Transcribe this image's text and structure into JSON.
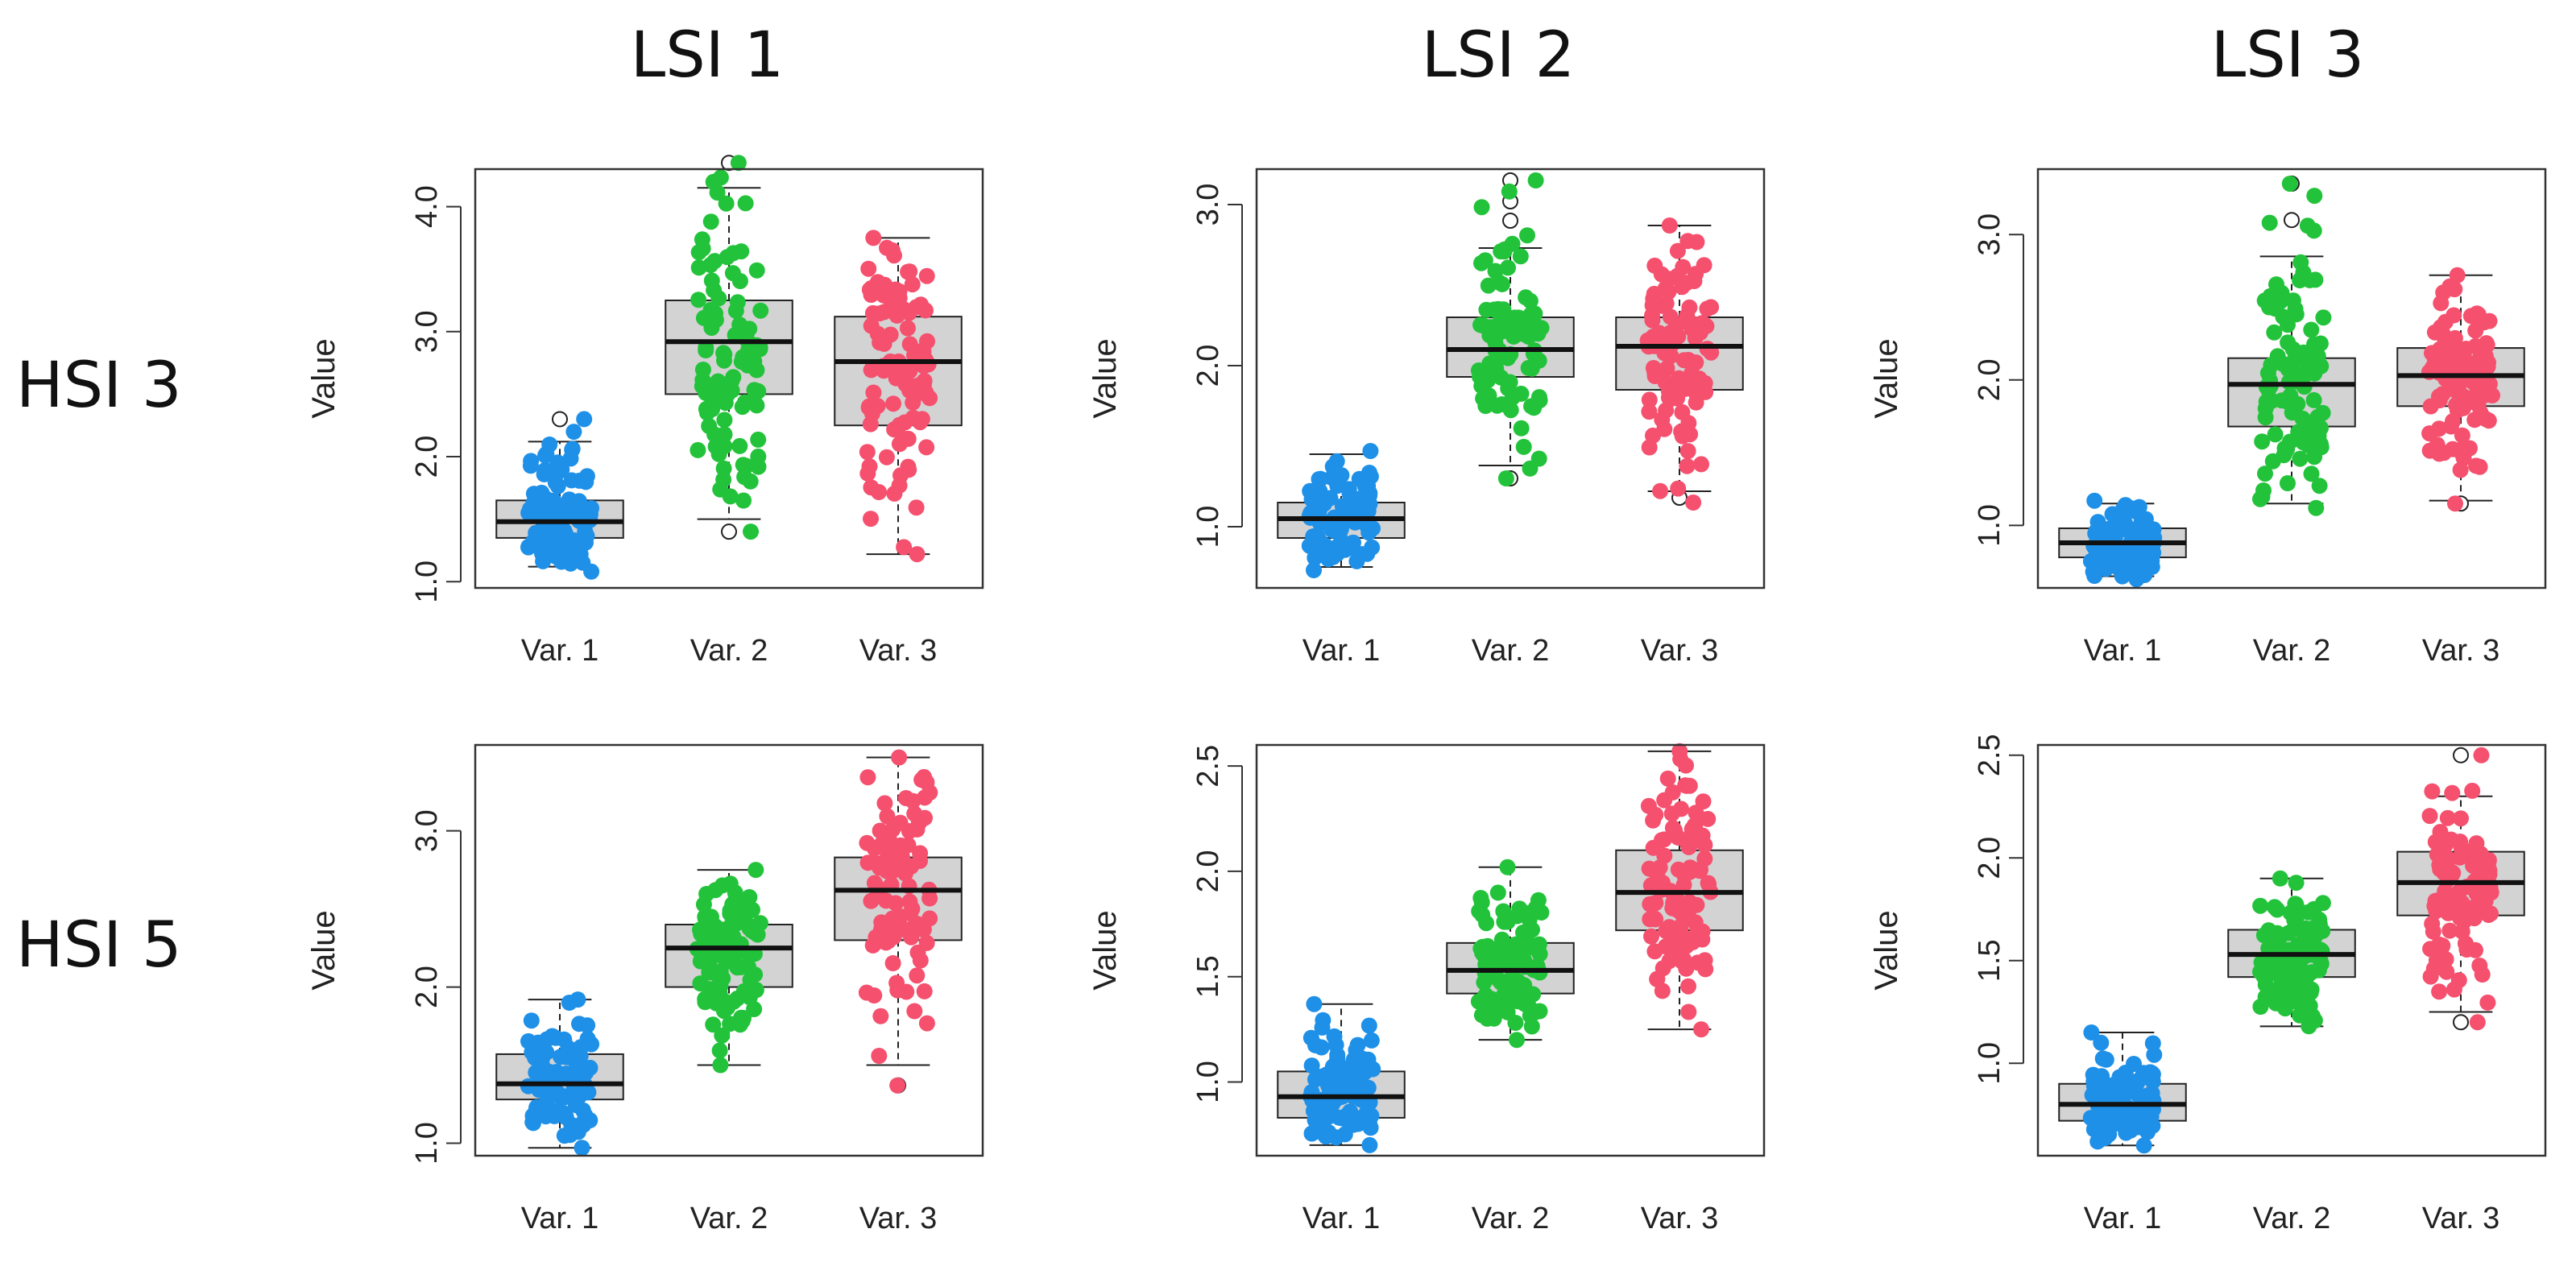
{
  "column_titles": [
    "LSI 1",
    "LSI 2",
    "LSI 3"
  ],
  "row_titles": [
    "HSI 3",
    "HSI 5"
  ],
  "colors": {
    "var1": "#1e90e8",
    "var2": "#22c33a",
    "var3": "#f5506e",
    "box_fill": "#d3d3d3"
  },
  "chart_data": [
    {
      "type": "box",
      "title": "HSI 3 / LSI 1",
      "ylabel": "Value",
      "categories": [
        "Var. 1",
        "Var. 2",
        "Var. 3"
      ],
      "ylim": [
        0.95,
        4.3
      ],
      "yticks": [
        1.0,
        2.0,
        3.0,
        4.0
      ],
      "ytick_labels": [
        "1.0",
        "2.0",
        "3.0",
        "4.0"
      ],
      "boxes": [
        {
          "whisker_low": 1.12,
          "q1": 1.35,
          "median": 1.48,
          "q3": 1.65,
          "whisker_high": 2.12,
          "outliers": [
            2.3
          ],
          "points_range": [
            1.08,
            2.3
          ]
        },
        {
          "whisker_low": 1.5,
          "q1": 2.5,
          "median": 2.92,
          "q3": 3.25,
          "whisker_high": 4.15,
          "outliers": [
            1.4,
            4.35
          ],
          "points_range": [
            1.4,
            4.35
          ]
        },
        {
          "whisker_low": 1.22,
          "q1": 2.25,
          "median": 2.76,
          "q3": 3.12,
          "whisker_high": 3.75,
          "outliers": [],
          "points_range": [
            1.22,
            3.75
          ]
        }
      ]
    },
    {
      "type": "box",
      "title": "HSI 3 / LSI 2",
      "ylabel": "Value",
      "categories": [
        "Var. 1",
        "Var. 2",
        "Var. 3"
      ],
      "ylim": [
        0.62,
        3.22
      ],
      "yticks": [
        1.0,
        2.0,
        3.0
      ],
      "ytick_labels": [
        "1.0",
        "2.0",
        "3.0"
      ],
      "boxes": [
        {
          "whisker_low": 0.75,
          "q1": 0.93,
          "median": 1.05,
          "q3": 1.15,
          "whisker_high": 1.45,
          "outliers": [],
          "points_range": [
            0.73,
            1.47
          ]
        },
        {
          "whisker_low": 1.38,
          "q1": 1.93,
          "median": 2.1,
          "q3": 2.3,
          "whisker_high": 2.73,
          "outliers": [
            1.3,
            2.9,
            3.02,
            3.15
          ],
          "points_range": [
            1.3,
            3.15
          ]
        },
        {
          "whisker_low": 1.22,
          "q1": 1.85,
          "median": 2.12,
          "q3": 2.3,
          "whisker_high": 2.87,
          "outliers": [
            1.18
          ],
          "points_range": [
            1.15,
            2.87
          ]
        }
      ]
    },
    {
      "type": "box",
      "title": "HSI 3 / LSI 3",
      "ylabel": "Value",
      "categories": [
        "Var. 1",
        "Var. 2",
        "Var. 3"
      ],
      "ylim": [
        0.57,
        3.45
      ],
      "yticks": [
        1.0,
        2.0,
        3.0
      ],
      "ytick_labels": [
        "1.0",
        "2.0",
        "3.0"
      ],
      "boxes": [
        {
          "whisker_low": 0.65,
          "q1": 0.78,
          "median": 0.88,
          "q3": 0.98,
          "whisker_high": 1.15,
          "outliers": [],
          "points_range": [
            0.63,
            1.17
          ]
        },
        {
          "whisker_low": 1.15,
          "q1": 1.68,
          "median": 1.97,
          "q3": 2.15,
          "whisker_high": 2.85,
          "outliers": [
            3.1,
            3.35
          ],
          "points_range": [
            1.12,
            3.35
          ]
        },
        {
          "whisker_low": 1.17,
          "q1": 1.82,
          "median": 2.03,
          "q3": 2.22,
          "whisker_high": 2.72,
          "outliers": [
            1.15
          ],
          "points_range": [
            1.15,
            2.72
          ]
        }
      ]
    },
    {
      "type": "box",
      "title": "HSI 5 / LSI 1",
      "ylabel": "Value",
      "categories": [
        "Var. 1",
        "Var. 2",
        "Var. 3"
      ],
      "ylim": [
        0.92,
        3.55
      ],
      "yticks": [
        1.0,
        2.0,
        3.0
      ],
      "ytick_labels": [
        "1.0",
        "2.0",
        "3.0"
      ],
      "boxes": [
        {
          "whisker_low": 0.97,
          "q1": 1.28,
          "median": 1.38,
          "q3": 1.57,
          "whisker_high": 1.92,
          "outliers": [],
          "points_range": [
            0.97,
            1.92
          ]
        },
        {
          "whisker_low": 1.5,
          "q1": 2.0,
          "median": 2.25,
          "q3": 2.4,
          "whisker_high": 2.75,
          "outliers": [],
          "points_range": [
            1.5,
            2.75
          ]
        },
        {
          "whisker_low": 1.5,
          "q1": 2.3,
          "median": 2.62,
          "q3": 2.83,
          "whisker_high": 3.47,
          "outliers": [
            1.37
          ],
          "points_range": [
            1.37,
            3.47
          ]
        }
      ]
    },
    {
      "type": "box",
      "title": "HSI 5 / LSI 2",
      "ylabel": "Value",
      "categories": [
        "Var. 1",
        "Var. 2",
        "Var. 3"
      ],
      "ylim": [
        0.65,
        2.6
      ],
      "yticks": [
        1.0,
        1.5,
        2.0,
        2.5
      ],
      "ytick_labels": [
        "1.0",
        "1.5",
        "2.0",
        "2.5"
      ],
      "boxes": [
        {
          "whisker_low": 0.7,
          "q1": 0.83,
          "median": 0.93,
          "q3": 1.05,
          "whisker_high": 1.37,
          "outliers": [],
          "points_range": [
            0.7,
            1.37
          ]
        },
        {
          "whisker_low": 1.2,
          "q1": 1.42,
          "median": 1.53,
          "q3": 1.66,
          "whisker_high": 2.02,
          "outliers": [],
          "points_range": [
            1.2,
            2.02
          ]
        },
        {
          "whisker_low": 1.25,
          "q1": 1.72,
          "median": 1.9,
          "q3": 2.1,
          "whisker_high": 2.57,
          "outliers": [],
          "points_range": [
            1.25,
            2.57
          ]
        }
      ]
    },
    {
      "type": "box",
      "title": "HSI 5 / LSI 3",
      "ylabel": "Value",
      "categories": [
        "Var. 1",
        "Var. 2",
        "Var. 3"
      ],
      "ylim": [
        0.55,
        2.55
      ],
      "yticks": [
        1.0,
        1.5,
        2.0,
        2.5
      ],
      "ytick_labels": [
        "1.0",
        "1.5",
        "2.0",
        "2.5"
      ],
      "boxes": [
        {
          "whisker_low": 0.6,
          "q1": 0.72,
          "median": 0.8,
          "q3": 0.9,
          "whisker_high": 1.15,
          "outliers": [],
          "points_range": [
            0.6,
            1.15
          ]
        },
        {
          "whisker_low": 1.18,
          "q1": 1.42,
          "median": 1.53,
          "q3": 1.65,
          "whisker_high": 1.9,
          "outliers": [],
          "points_range": [
            1.18,
            1.9
          ]
        },
        {
          "whisker_low": 1.25,
          "q1": 1.72,
          "median": 1.88,
          "q3": 2.03,
          "whisker_high": 2.3,
          "outliers": [
            1.2,
            2.5
          ],
          "points_range": [
            1.2,
            2.5
          ]
        }
      ]
    }
  ]
}
